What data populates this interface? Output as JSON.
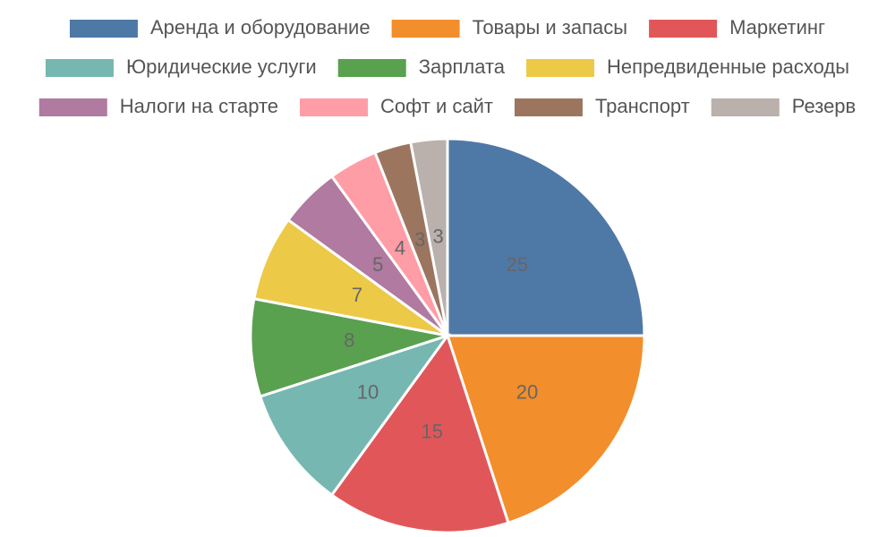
{
  "chart_data": {
    "type": "pie",
    "categories": [
      "Аренда и оборудование",
      "Товары и запасы",
      "Маркетинг",
      "Юридические услуги",
      "Зарплата",
      "Непредвиденные расходы",
      "Налоги на старте",
      "Софт и сайт",
      "Транспорт",
      "Резерв"
    ],
    "values": [
      25,
      20,
      15,
      10,
      8,
      7,
      5,
      4,
      3,
      3
    ],
    "colors": [
      "#4e79a7",
      "#f28e2b",
      "#e15759",
      "#76b7b2",
      "#59a14f",
      "#edc948",
      "#b07aa1",
      "#ff9da7",
      "#9c755f",
      "#bab0ac"
    ],
    "legend": "top"
  }
}
